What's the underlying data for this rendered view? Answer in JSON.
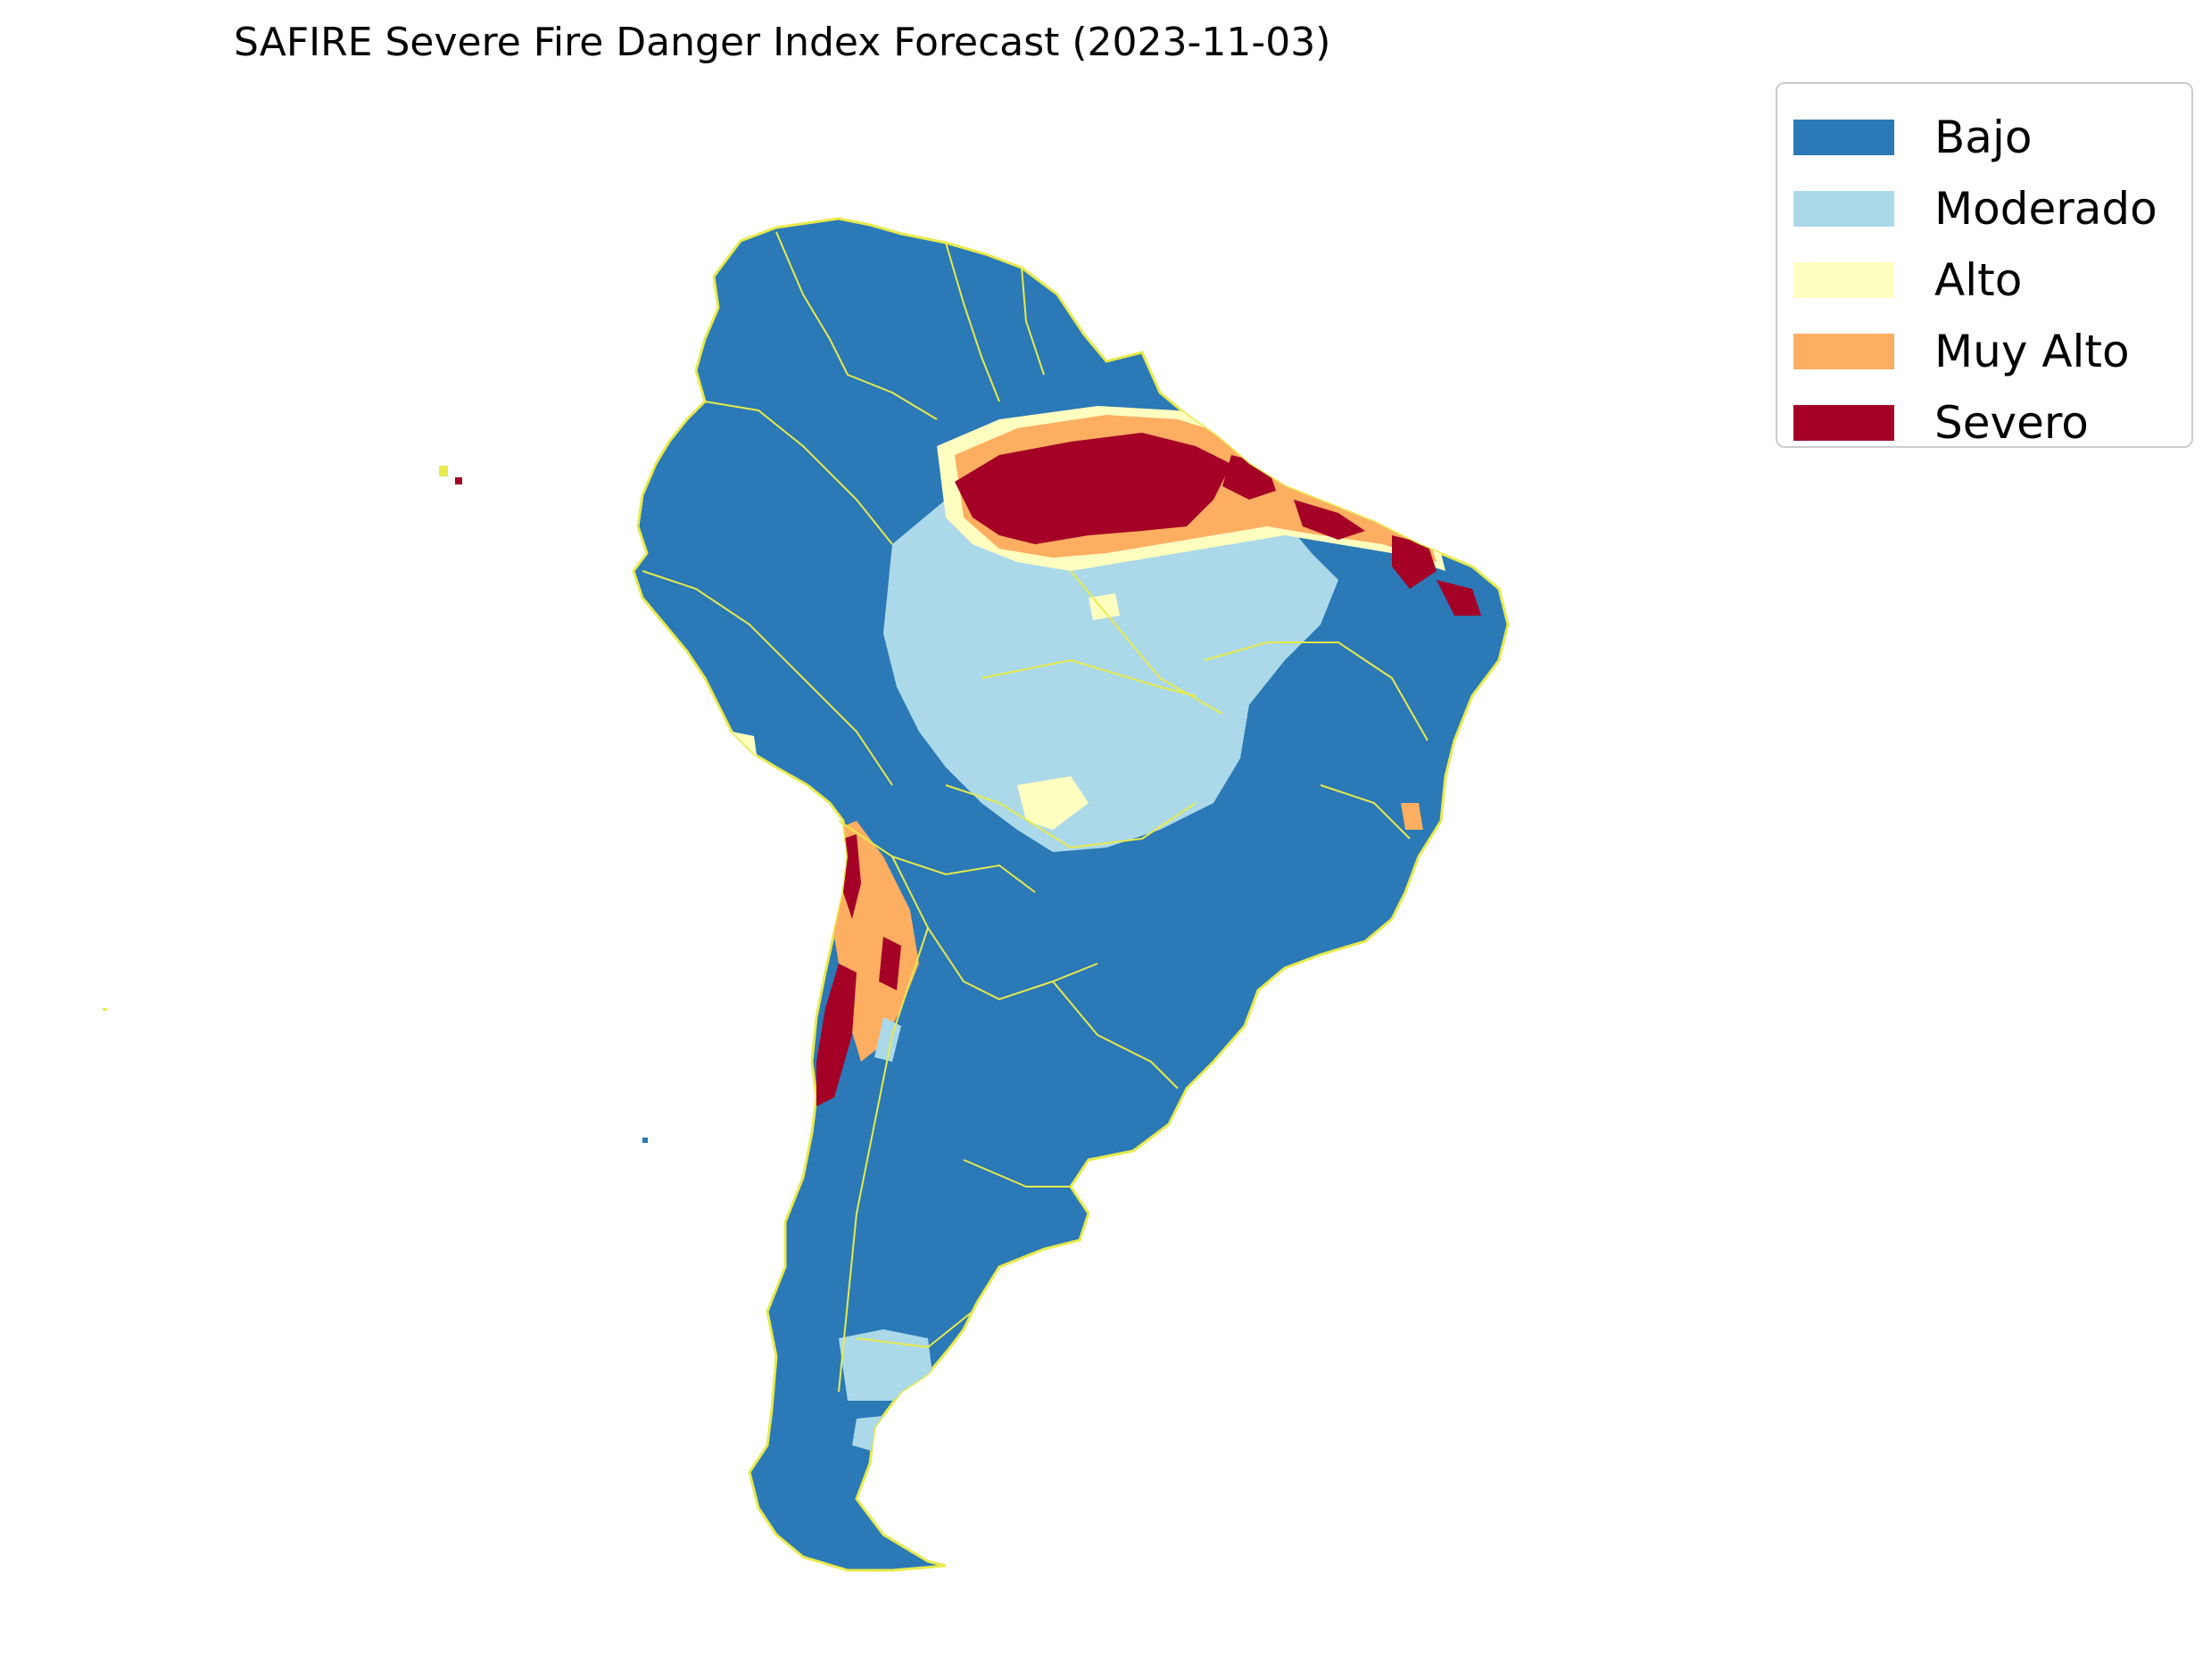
{
  "title": "SAFIRE Severe Fire Danger Index Forecast (2023-11-03)",
  "legend": [
    {
      "label": "Bajo",
      "color": "#2b79b6"
    },
    {
      "label": "Moderado",
      "color": "#abd9ea"
    },
    {
      "label": "Alto",
      "color": "#ffffbf"
    },
    {
      "label": "Muy Alto",
      "color": "#fdae61"
    },
    {
      "label": "Severo",
      "color": "#a50026"
    }
  ],
  "border_color": "#e8ea4a",
  "map_subject": "South America",
  "legend_placement": "top-right"
}
